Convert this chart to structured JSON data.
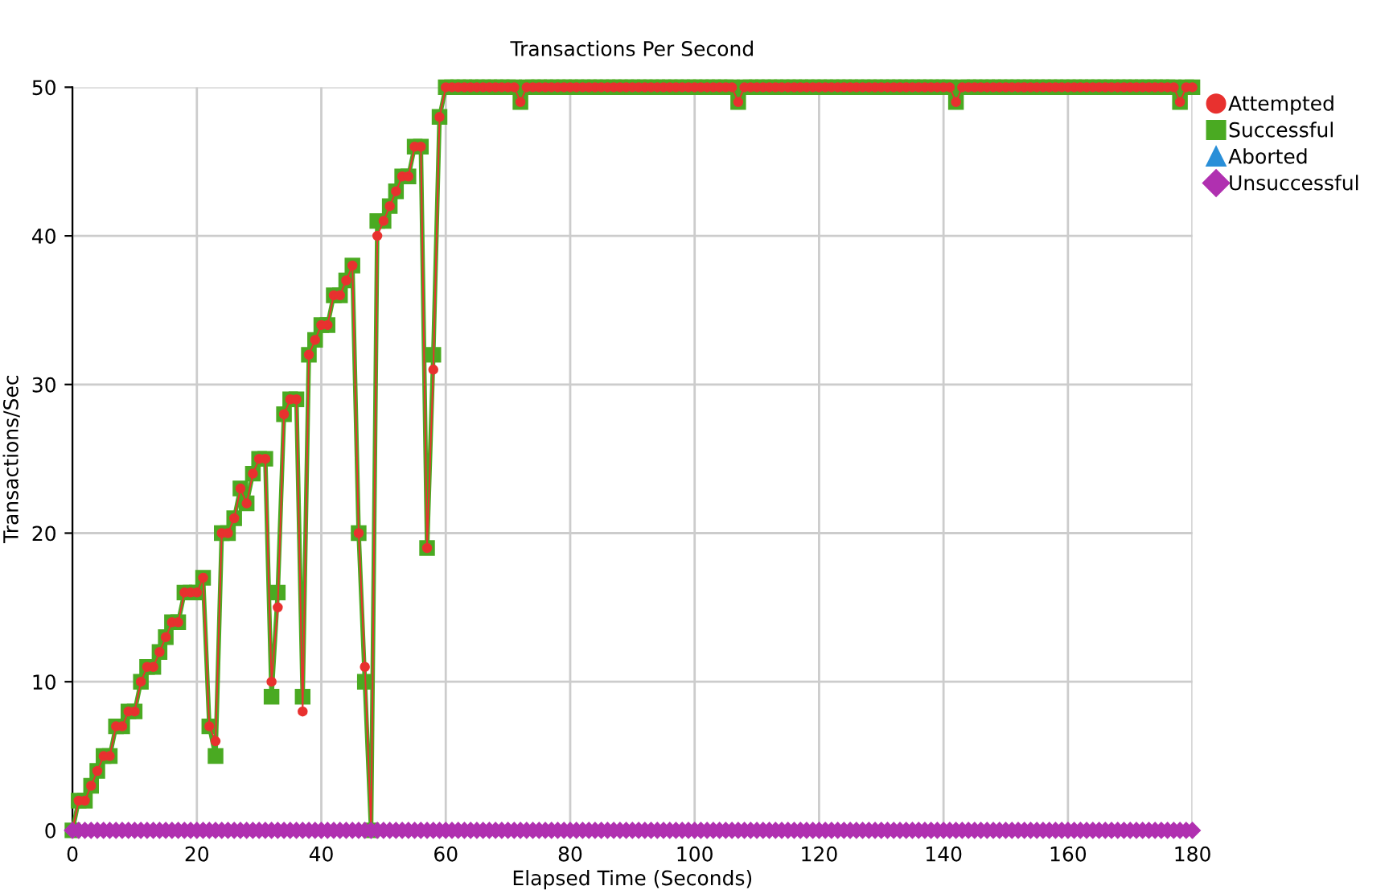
{
  "chart_data": {
    "type": "line",
    "title": "Transactions Per Second",
    "xlabel": "Elapsed Time (Seconds)",
    "ylabel": "Transactions/Sec",
    "x": [
      0,
      1,
      2,
      3,
      4,
      5,
      6,
      7,
      8,
      9,
      10,
      11,
      12,
      13,
      14,
      15,
      16,
      17,
      18,
      19,
      20,
      21,
      22,
      23,
      24,
      25,
      26,
      27,
      28,
      29,
      30,
      31,
      32,
      33,
      34,
      35,
      36,
      37,
      38,
      39,
      40,
      41,
      42,
      43,
      44,
      45,
      46,
      47,
      48,
      49,
      50,
      51,
      52,
      53,
      54,
      55,
      56,
      57,
      58,
      59,
      60,
      61,
      62,
      63,
      64,
      65,
      66,
      67,
      68,
      69,
      70,
      71,
      72,
      73,
      74,
      75,
      76,
      77,
      78,
      79,
      80,
      81,
      82,
      83,
      84,
      85,
      86,
      87,
      88,
      89,
      90,
      91,
      92,
      93,
      94,
      95,
      96,
      97,
      98,
      99,
      100,
      101,
      102,
      103,
      104,
      105,
      106,
      107,
      108,
      109,
      110,
      111,
      112,
      113,
      114,
      115,
      116,
      117,
      118,
      119,
      120,
      121,
      122,
      123,
      124,
      125,
      126,
      127,
      128,
      129,
      130,
      131,
      132,
      133,
      134,
      135,
      136,
      137,
      138,
      139,
      140,
      141,
      142,
      143,
      144,
      145,
      146,
      147,
      148,
      149,
      150,
      151,
      152,
      153,
      154,
      155,
      156,
      157,
      158,
      159,
      160,
      161,
      162,
      163,
      164,
      165,
      166,
      167,
      168,
      169,
      170,
      171,
      172,
      173,
      174,
      175,
      176,
      177,
      178,
      179,
      180
    ],
    "series": [
      {
        "name": "Attempted",
        "color": "#e8312f",
        "marker": "circle",
        "values": [
          0,
          2,
          2,
          3,
          4,
          5,
          5,
          7,
          7,
          8,
          8,
          10,
          11,
          11,
          12,
          13,
          14,
          14,
          16,
          16,
          16,
          17,
          7,
          6,
          20,
          20,
          21,
          23,
          22,
          24,
          25,
          25,
          10,
          15,
          28,
          29,
          29,
          8,
          32,
          33,
          34,
          34,
          36,
          36,
          37,
          38,
          20,
          11,
          0,
          40,
          41,
          42,
          43,
          44,
          44,
          46,
          46,
          19,
          31,
          48,
          50,
          50,
          50,
          50,
          50,
          50,
          50,
          50,
          50,
          50,
          50,
          50,
          49,
          50,
          50,
          50,
          50,
          50,
          50,
          50,
          50,
          50,
          50,
          50,
          50,
          50,
          50,
          50,
          50,
          50,
          50,
          50,
          50,
          50,
          50,
          50,
          50,
          50,
          50,
          50,
          50,
          50,
          50,
          50,
          50,
          50,
          50,
          49,
          50,
          50,
          50,
          50,
          50,
          50,
          50,
          50,
          50,
          50,
          50,
          50,
          50,
          50,
          50,
          50,
          50,
          50,
          50,
          50,
          50,
          50,
          50,
          50,
          50,
          50,
          50,
          50,
          50,
          50,
          50,
          50,
          50,
          50,
          49,
          50,
          50,
          50,
          50,
          50,
          50,
          50,
          50,
          50,
          50,
          50,
          50,
          50,
          50,
          50,
          50,
          50,
          50,
          50,
          50,
          50,
          50,
          50,
          50,
          50,
          50,
          50,
          50,
          50,
          50,
          50,
          50,
          50,
          50,
          50,
          49,
          50,
          50
        ]
      },
      {
        "name": "Successful",
        "color": "#4aaa22",
        "marker": "square",
        "values": [
          0,
          2,
          2,
          3,
          4,
          5,
          5,
          7,
          7,
          8,
          8,
          10,
          11,
          11,
          12,
          13,
          14,
          14,
          16,
          16,
          16,
          17,
          7,
          5,
          20,
          20,
          21,
          23,
          22,
          24,
          25,
          25,
          9,
          16,
          28,
          29,
          29,
          9,
          32,
          33,
          34,
          34,
          36,
          36,
          37,
          38,
          20,
          10,
          0,
          41,
          41,
          42,
          43,
          44,
          44,
          46,
          46,
          19,
          32,
          48,
          50,
          50,
          50,
          50,
          50,
          50,
          50,
          50,
          50,
          50,
          50,
          50,
          49,
          50,
          50,
          50,
          50,
          50,
          50,
          50,
          50,
          50,
          50,
          50,
          50,
          50,
          50,
          50,
          50,
          50,
          50,
          50,
          50,
          50,
          50,
          50,
          50,
          50,
          50,
          50,
          50,
          50,
          50,
          50,
          50,
          50,
          50,
          49,
          50,
          50,
          50,
          50,
          50,
          50,
          50,
          50,
          50,
          50,
          50,
          50,
          50,
          50,
          50,
          50,
          50,
          50,
          50,
          50,
          50,
          50,
          50,
          50,
          50,
          50,
          50,
          50,
          50,
          50,
          50,
          50,
          50,
          50,
          49,
          50,
          50,
          50,
          50,
          50,
          50,
          50,
          50,
          50,
          50,
          50,
          50,
          50,
          50,
          50,
          50,
          50,
          50,
          50,
          50,
          50,
          50,
          50,
          50,
          50,
          50,
          50,
          50,
          50,
          50,
          50,
          50,
          50,
          50,
          50,
          49,
          50,
          50
        ]
      },
      {
        "name": "Aborted",
        "color": "#2a8fd8",
        "marker": "triangle",
        "values": [
          null,
          null,
          null,
          null,
          null,
          null,
          null,
          null,
          null,
          null,
          null,
          null,
          null,
          null,
          null,
          null,
          null,
          null,
          null,
          null,
          null,
          null,
          null,
          null,
          null,
          null,
          null,
          null,
          null,
          null,
          null,
          null,
          null,
          null,
          null,
          null,
          null,
          null,
          null,
          null,
          null,
          null,
          null,
          null,
          null,
          null,
          null,
          null,
          null,
          null,
          null,
          null,
          null,
          null,
          null,
          null,
          null,
          null,
          null,
          null,
          null,
          null,
          null,
          null,
          null,
          null,
          null,
          null,
          null,
          null,
          null,
          null,
          null,
          null,
          null,
          null,
          null,
          null,
          null,
          null,
          null,
          null,
          null,
          null,
          null,
          null,
          null,
          null,
          null,
          null,
          null,
          null,
          null,
          null,
          null,
          null,
          null,
          null,
          null,
          null,
          null,
          null,
          null,
          null,
          null,
          null,
          null,
          null,
          null,
          null,
          null,
          null,
          null,
          null,
          null,
          null,
          null,
          null,
          null,
          null,
          null,
          null,
          null,
          null,
          null,
          null,
          null,
          null,
          null,
          null,
          null,
          null,
          null,
          null,
          null,
          null,
          null,
          null,
          null,
          null,
          null,
          null,
          null,
          null,
          null,
          null,
          null,
          null,
          null,
          null,
          null,
          null,
          null,
          null,
          null,
          null,
          null,
          null,
          null,
          null,
          null,
          null,
          null,
          null,
          null,
          null,
          null,
          null,
          null,
          null,
          null,
          null,
          null,
          null,
          null,
          null,
          null,
          null,
          null,
          null,
          null
        ]
      },
      {
        "name": "Unsuccessful",
        "color": "#b030b0",
        "marker": "diamond",
        "values": [
          0,
          0,
          0,
          0,
          0,
          0,
          0,
          0,
          0,
          0,
          0,
          0,
          0,
          0,
          0,
          0,
          0,
          0,
          0,
          0,
          0,
          0,
          0,
          0,
          0,
          0,
          0,
          0,
          0,
          0,
          0,
          0,
          0,
          0,
          0,
          0,
          0,
          0,
          0,
          0,
          0,
          0,
          0,
          0,
          0,
          0,
          0,
          0,
          0,
          0,
          0,
          0,
          0,
          0,
          0,
          0,
          0,
          0,
          0,
          0,
          0,
          0,
          0,
          0,
          0,
          0,
          0,
          0,
          0,
          0,
          0,
          0,
          0,
          0,
          0,
          0,
          0,
          0,
          0,
          0,
          0,
          0,
          0,
          0,
          0,
          0,
          0,
          0,
          0,
          0,
          0,
          0,
          0,
          0,
          0,
          0,
          0,
          0,
          0,
          0,
          0,
          0,
          0,
          0,
          0,
          0,
          0,
          0,
          0,
          0,
          0,
          0,
          0,
          0,
          0,
          0,
          0,
          0,
          0,
          0,
          0,
          0,
          0,
          0,
          0,
          0,
          0,
          0,
          0,
          0,
          0,
          0,
          0,
          0,
          0,
          0,
          0,
          0,
          0,
          0,
          0,
          0,
          0,
          0,
          0,
          0,
          0,
          0,
          0,
          0,
          0,
          0,
          0,
          0,
          0,
          0,
          0,
          0,
          0,
          0,
          0,
          0,
          0,
          0,
          0,
          0,
          0,
          0,
          0,
          0,
          0,
          0,
          0,
          0,
          0,
          0,
          0,
          0,
          0,
          0,
          0
        ]
      }
    ],
    "xlim": [
      0,
      180
    ],
    "xticks": [
      0,
      20,
      40,
      60,
      80,
      100,
      120,
      140,
      160,
      180
    ],
    "ylim": [
      0,
      50
    ],
    "yticks": [
      0,
      10,
      20,
      30,
      40,
      50
    ],
    "grid": true,
    "legend": "top right",
    "line_style": "solid"
  }
}
